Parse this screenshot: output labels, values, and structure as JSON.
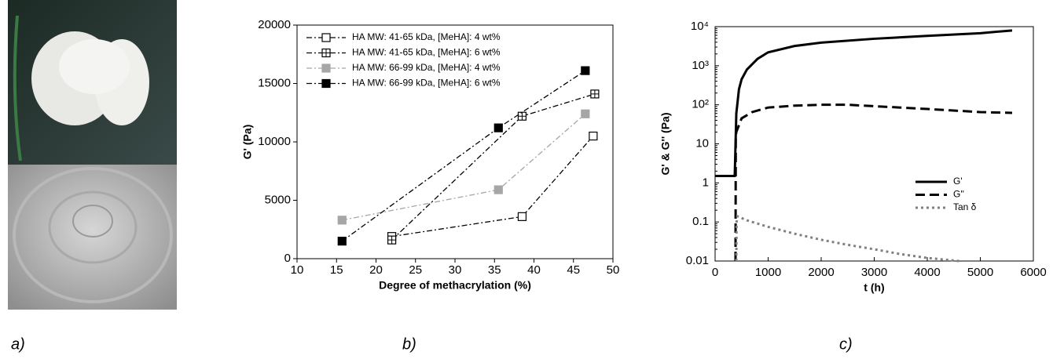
{
  "panel_a": {
    "label": "a)"
  },
  "chart_data": [
    {
      "type": "line",
      "panel_label": "b)",
      "x_label": "Degree of methacrylation (%)",
      "y_label": "G' (Pa)",
      "xlim": [
        10,
        50
      ],
      "xticks": [
        10,
        15,
        20,
        25,
        30,
        35,
        40,
        45,
        50
      ],
      "ylim": [
        0,
        20000
      ],
      "yticks": [
        0,
        5000,
        10000,
        15000,
        20000
      ],
      "log_y": false,
      "legend": "upper-left",
      "series": [
        {
          "name": "HA MW: 41-65 kDa, [MeHA]: 4 wt%",
          "color": "#000000",
          "marker": "open-square",
          "line_style": "dash-dot",
          "x": [
            22,
            38.5,
            47.5
          ],
          "values": [
            1900,
            3600,
            10500
          ]
        },
        {
          "name": "HA MW: 41-65 kDa, [MeHA]: 6 wt%",
          "color": "#000000",
          "marker": "plus-square",
          "line_style": "dash-dot",
          "x": [
            22,
            38.5,
            47.7
          ],
          "values": [
            1600,
            12200,
            14100
          ]
        },
        {
          "name": "HA MW: 66-99 kDa, [MeHA]: 4 wt%",
          "color": "#a6a6a6",
          "marker": "square",
          "line_style": "dash-dot",
          "x": [
            15.7,
            35.5,
            46.5
          ],
          "values": [
            3300,
            5900,
            12400
          ]
        },
        {
          "name": "HA MW: 66-99 kDa, [MeHA]: 6 wt%",
          "color": "#000000",
          "marker": "square",
          "line_style": "dash-dot",
          "x": [
            15.7,
            35.5,
            46.5
          ],
          "values": [
            1500,
            11200,
            16100
          ]
        }
      ]
    },
    {
      "type": "line",
      "panel_label": "c)",
      "x_label": "t (h)",
      "y_label": "G' & G'' (Pa)",
      "xlim": [
        0,
        6000
      ],
      "xticks": [
        0,
        1000,
        2000,
        3000,
        4000,
        5000,
        6000
      ],
      "ylim": [
        0.01,
        10000
      ],
      "yticks": [
        0.01,
        0.1,
        1,
        10,
        {
          "value": 100,
          "label": "10²"
        },
        {
          "value": 1000,
          "label": "10³"
        },
        {
          "value": 10000,
          "label": "10⁴"
        }
      ],
      "log_y": true,
      "legend": "lower-right",
      "series": [
        {
          "name": "G'",
          "color": "#000000",
          "marker": "none",
          "line_style": "solid",
          "x": [
            0,
            300,
            370,
            380,
            400,
            450,
            500,
            600,
            800,
            1000,
            1500,
            2000,
            3000,
            4000,
            5000,
            5600
          ],
          "values": [
            1.5,
            1.5,
            1.5,
            5,
            60,
            250,
            450,
            800,
            1500,
            2200,
            3200,
            3900,
            4900,
            5800,
            6800,
            8000
          ]
        },
        {
          "name": "G''",
          "color": "#000000",
          "marker": "none",
          "line_style": "dash",
          "x": [
            385,
            390,
            400,
            450,
            500,
            700,
            1000,
            1500,
            2000,
            2500,
            3000,
            4000,
            5000,
            5600
          ],
          "values": [
            0.01,
            15,
            20,
            30,
            45,
            65,
            85,
            95,
            100,
            100,
            92,
            78,
            65,
            62
          ]
        },
        {
          "name": "Tan δ",
          "color": "#808080",
          "marker": "none",
          "line_style": "dot",
          "x": [
            400,
            405,
            420,
            600,
            1000,
            1500,
            2000,
            2500,
            3000,
            3500,
            4000,
            4600
          ],
          "values": [
            0.01,
            0.1,
            0.14,
            0.11,
            0.075,
            0.05,
            0.035,
            0.026,
            0.02,
            0.015,
            0.012,
            0.01
          ]
        }
      ]
    }
  ]
}
